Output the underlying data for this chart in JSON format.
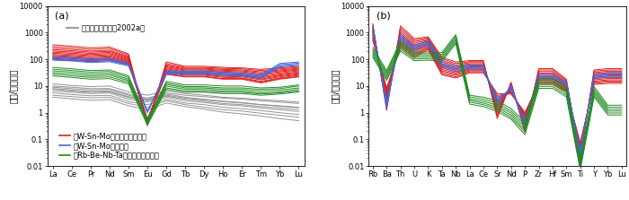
{
  "panel_a": {
    "xlabel_elements": [
      "La",
      "Ce",
      "Pr",
      "Nd",
      "Sm",
      "Eu",
      "Gd",
      "Tb",
      "Dy",
      "Ho",
      "Er",
      "Tm",
      "Yb",
      "Lu"
    ],
    "ylabel": "岩石/球粒陨石",
    "label": "(a)",
    "ylim": [
      0.01,
      10000
    ],
    "legend_gray_label": "蚀石（裘凤农等，2002a）",
    "legend_red_label": "富W-Sn-Mo似班状二长花岗岩",
    "legend_blue_label": "富W-Sn-Mo花岗班岩",
    "legend_green_label": "富Rb-Be-Nb-Ta似班状二长花岗岩",
    "red_series": [
      [
        350,
        310,
        270,
        290,
        160,
        0.32,
        80,
        55,
        55,
        50,
        48,
        42,
        48,
        55
      ],
      [
        300,
        270,
        235,
        255,
        145,
        0.35,
        70,
        50,
        50,
        46,
        44,
        38,
        44,
        50
      ],
      [
        260,
        235,
        205,
        220,
        130,
        0.38,
        62,
        46,
        46,
        42,
        40,
        34,
        40,
        46
      ],
      [
        230,
        210,
        185,
        200,
        120,
        0.4,
        57,
        43,
        43,
        39,
        37,
        31,
        37,
        43
      ],
      [
        205,
        188,
        168,
        182,
        112,
        0.42,
        52,
        40,
        40,
        36,
        34,
        28,
        34,
        40
      ],
      [
        185,
        170,
        152,
        165,
        104,
        0.44,
        48,
        37,
        37,
        33,
        31,
        25,
        31,
        37
      ],
      [
        168,
        154,
        138,
        150,
        97,
        0.46,
        44,
        34,
        34,
        30,
        28,
        22,
        28,
        34
      ],
      [
        153,
        140,
        126,
        136,
        91,
        0.48,
        40,
        31,
        31,
        27,
        26,
        20,
        26,
        31
      ],
      [
        140,
        128,
        115,
        124,
        85,
        0.5,
        37,
        29,
        29,
        25,
        24,
        18,
        24,
        29
      ],
      [
        128,
        116,
        105,
        113,
        80,
        0.52,
        34,
        27,
        27,
        23,
        22,
        17,
        22,
        27
      ],
      [
        118,
        106,
        97,
        104,
        75,
        0.54,
        32,
        25,
        25,
        21,
        20,
        15,
        20,
        25
      ],
      [
        108,
        97,
        89,
        96,
        70,
        0.56,
        29,
        23,
        23,
        19,
        19,
        14,
        19,
        23
      ],
      [
        100,
        90,
        82,
        89,
        66,
        0.58,
        27,
        22,
        22,
        18,
        18,
        13,
        18,
        22
      ]
    ],
    "blue_series": [
      [
        130,
        120,
        105,
        112,
        72,
        1.0,
        38,
        36,
        36,
        33,
        31,
        26,
        70,
        80
      ],
      [
        115,
        107,
        94,
        100,
        66,
        1.05,
        34,
        33,
        33,
        30,
        28,
        23,
        63,
        72
      ],
      [
        103,
        96,
        84,
        90,
        61,
        1.1,
        31,
        30,
        30,
        27,
        26,
        21,
        57,
        65
      ],
      [
        93,
        87,
        76,
        81,
        57,
        1.15,
        28,
        28,
        28,
        25,
        24,
        19,
        52,
        59
      ]
    ],
    "green_series": [
      [
        50,
        44,
        38,
        40,
        24,
        0.55,
        15,
        11,
        11,
        10,
        10,
        8.5,
        9,
        11
      ],
      [
        43,
        38,
        33,
        35,
        21,
        0.5,
        13,
        9.5,
        9.5,
        8.5,
        8.5,
        7.5,
        8,
        10
      ],
      [
        37,
        33,
        28,
        30,
        18,
        0.46,
        11.5,
        8.5,
        8.5,
        7.5,
        7.5,
        6.5,
        7,
        8.5
      ],
      [
        32,
        28,
        24,
        26,
        16,
        0.42,
        10,
        7.5,
        7.5,
        6.5,
        6.5,
        5.5,
        6,
        7.5
      ],
      [
        28,
        24,
        21,
        22,
        14,
        0.38,
        8.5,
        6.5,
        6.5,
        5.8,
        5.8,
        5.0,
        5.5,
        6.5
      ],
      [
        24,
        21,
        18,
        19,
        12,
        0.34,
        7.5,
        5.8,
        5.8,
        5.2,
        5.2,
        4.5,
        5.0,
        6.0
      ]
    ],
    "gray_series": [
      [
        10,
        9,
        8,
        8,
        5.0,
        3.5,
        5.5,
        4.5,
        4.0,
        3.5,
        3.2,
        2.8,
        2.5,
        2.2
      ],
      [
        8,
        7,
        6.2,
        6.5,
        4.0,
        3.0,
        4.5,
        3.5,
        3.0,
        2.6,
        2.3,
        2.0,
        1.8,
        1.6
      ],
      [
        6.5,
        5.8,
        5.2,
        5.5,
        3.2,
        2.5,
        3.8,
        2.8,
        2.4,
        2.0,
        1.8,
        1.5,
        1.3,
        1.1
      ],
      [
        5.5,
        4.8,
        4.3,
        4.5,
        2.6,
        2.0,
        3.2,
        2.3,
        2.0,
        1.6,
        1.4,
        1.2,
        1.0,
        0.85
      ],
      [
        4.5,
        4.0,
        3.6,
        3.8,
        2.2,
        1.6,
        2.8,
        2.0,
        1.6,
        1.3,
        1.15,
        0.95,
        0.8,
        0.68
      ],
      [
        3.8,
        3.3,
        2.9,
        3.1,
        1.8,
        1.3,
        2.3,
        1.7,
        1.35,
        1.05,
        0.9,
        0.75,
        0.6,
        0.5
      ],
      [
        7.5,
        6.5,
        5.8,
        6.1,
        3.7,
        2.8,
        4.2,
        3.2,
        2.7,
        2.2,
        2.0,
        1.7,
        1.5,
        1.3
      ],
      [
        12,
        10.5,
        9.5,
        10,
        6.0,
        4.5,
        6.5,
        5.2,
        4.5,
        3.8,
        3.5,
        3.1,
        2.8,
        2.5
      ],
      [
        9,
        8,
        7.1,
        7.5,
        4.5,
        3.2,
        5.0,
        3.8,
        3.2,
        2.7,
        2.4,
        2.0,
        1.75,
        1.55
      ]
    ]
  },
  "panel_b": {
    "xlabel_elements": [
      "Rb",
      "Ba",
      "Th",
      "U",
      "K",
      "Ta",
      "Nb",
      "La",
      "Ce",
      "Sr",
      "Nd",
      "P",
      "Zr",
      "Hf",
      "Sm",
      "Ti",
      "Y",
      "Yb",
      "Lu"
    ],
    "ylabel": "岩石/原始地幔",
    "label": "(b)",
    "ylim": [
      0.01,
      10000
    ],
    "red_series": [
      [
        2200,
        1.2,
        1800,
        600,
        700,
        120,
        80,
        90,
        90,
        0.6,
        14,
        0.18,
        45,
        45,
        18,
        0.018,
        40,
        45,
        45
      ],
      [
        1900,
        1.5,
        1500,
        520,
        640,
        105,
        70,
        82,
        82,
        0.75,
        12.5,
        0.22,
        40,
        40,
        16,
        0.02,
        36,
        40,
        40
      ],
      [
        1650,
        1.8,
        1250,
        460,
        580,
        92,
        62,
        75,
        75,
        0.9,
        11.5,
        0.27,
        35,
        35,
        14.5,
        0.023,
        32,
        36,
        36
      ],
      [
        1450,
        2.1,
        1050,
        400,
        530,
        80,
        55,
        68,
        68,
        1.1,
        10.5,
        0.32,
        31,
        31,
        13,
        0.026,
        29,
        32,
        32
      ],
      [
        1280,
        2.5,
        900,
        350,
        480,
        70,
        49,
        62,
        62,
        1.3,
        9.5,
        0.37,
        28,
        28,
        12,
        0.03,
        26,
        29,
        29
      ],
      [
        1130,
        3.0,
        770,
        305,
        440,
        62,
        44,
        57,
        57,
        1.6,
        8.7,
        0.43,
        25,
        25,
        11,
        0.034,
        23,
        26,
        26
      ],
      [
        1000,
        3.5,
        665,
        265,
        400,
        54,
        39,
        52,
        52,
        1.9,
        8.0,
        0.5,
        22,
        22,
        10,
        0.038,
        21,
        23,
        23
      ],
      [
        890,
        4.1,
        575,
        230,
        365,
        48,
        35,
        47,
        47,
        2.3,
        7.4,
        0.57,
        20,
        20,
        9.2,
        0.043,
        19,
        21,
        21
      ],
      [
        790,
        4.8,
        495,
        200,
        335,
        42,
        31,
        43,
        43,
        2.7,
        6.8,
        0.65,
        18,
        18,
        8.5,
        0.048,
        17,
        19,
        19
      ],
      [
        705,
        5.5,
        430,
        175,
        305,
        37,
        28,
        40,
        40,
        3.2,
        6.3,
        0.73,
        16,
        16,
        7.8,
        0.054,
        15,
        17,
        17
      ],
      [
        630,
        6.4,
        375,
        153,
        280,
        33,
        25,
        37,
        37,
        3.8,
        5.8,
        0.82,
        14.5,
        14.5,
        7.2,
        0.06,
        14,
        15.5,
        15.5
      ],
      [
        565,
        7.4,
        325,
        133,
        256,
        29,
        22,
        34,
        34,
        4.4,
        5.4,
        0.92,
        13,
        13,
        6.7,
        0.067,
        12.5,
        14,
        14
      ],
      [
        508,
        8.5,
        283,
        116,
        234,
        26,
        20,
        31,
        31,
        5.2,
        5.0,
        1.03,
        11.5,
        11.5,
        6.2,
        0.075,
        11.5,
        12.5,
        12.5
      ]
    ],
    "blue_series": [
      [
        1600,
        1.5,
        900,
        320,
        520,
        80,
        55,
        62,
        58,
        1.8,
        10.5,
        0.28,
        28,
        28,
        14,
        0.025,
        27,
        32,
        32
      ],
      [
        1380,
        1.9,
        760,
        278,
        460,
        68,
        47,
        55,
        51,
        2.3,
        9.2,
        0.35,
        24,
        24,
        12.5,
        0.03,
        24,
        28,
        28
      ],
      [
        1200,
        2.3,
        645,
        242,
        408,
        58,
        40,
        49,
        46,
        2.9,
        8.1,
        0.43,
        21,
        21,
        11,
        0.034,
        21,
        24,
        24
      ],
      [
        1050,
        2.8,
        548,
        211,
        362,
        49,
        34,
        44,
        41,
        3.6,
        7.2,
        0.52,
        18.5,
        18.5,
        9.8,
        0.039,
        19,
        21,
        21
      ]
    ],
    "green_series": [
      [
        280,
        38,
        480,
        185,
        190,
        180,
        850,
        4.5,
        3.8,
        2.8,
        1.4,
        0.45,
        19,
        19,
        9.5,
        0.018,
        9.5,
        1.9,
        1.9
      ],
      [
        235,
        32,
        400,
        160,
        165,
        155,
        730,
        3.9,
        3.2,
        2.3,
        1.15,
        0.36,
        16,
        16,
        7.8,
        0.015,
        7.8,
        1.6,
        1.6
      ],
      [
        198,
        27,
        338,
        138,
        143,
        133,
        625,
        3.3,
        2.7,
        1.9,
        0.96,
        0.29,
        13.5,
        13.5,
        6.5,
        0.012,
        6.5,
        1.35,
        1.35
      ],
      [
        168,
        22.5,
        285,
        119,
        123,
        114,
        535,
        2.9,
        2.3,
        1.6,
        0.8,
        0.23,
        11.5,
        11.5,
        5.5,
        0.01,
        5.5,
        1.15,
        1.15
      ],
      [
        142,
        19,
        242,
        103,
        107,
        97,
        458,
        2.5,
        2.0,
        1.35,
        0.67,
        0.19,
        9.7,
        9.7,
        4.6,
        0.008,
        4.6,
        0.97,
        0.97
      ],
      [
        120,
        16,
        205,
        89,
        93,
        83,
        392,
        2.1,
        1.7,
        1.12,
        0.57,
        0.15,
        8.2,
        8.2,
        3.9,
        0.007,
        3.9,
        0.82,
        0.82
      ]
    ]
  },
  "colors": {
    "red": "#e02020",
    "blue": "#4169e1",
    "green": "#228b22",
    "gray": "#888888"
  },
  "line_width": 0.7,
  "font_size_label": 7,
  "font_size_tick": 6,
  "font_size_legend": 6,
  "font_size_panel_label": 8
}
